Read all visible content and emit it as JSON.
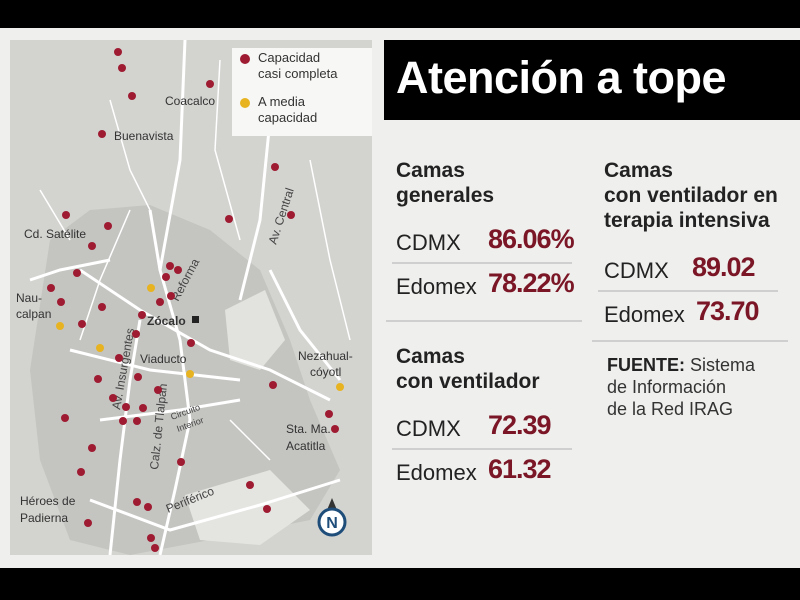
{
  "title": "Atención a tope",
  "legend": {
    "items": [
      {
        "label_line1": "Capacidad",
        "label_line2": "casi completa",
        "color": "#9e1b32"
      },
      {
        "label_line1": "A media",
        "label_line2": "capacidad",
        "color": "#e8b320"
      }
    ]
  },
  "map": {
    "places": {
      "coacalco": "Coacalco",
      "buenavista": "Buenavista",
      "satelite": "Cd. Satélite",
      "naucalpan1": "Nau-",
      "naucalpan2": "calpan",
      "zocalo": "Zócalo",
      "viaducto": "Viaducto",
      "neza1": "Nezahual-",
      "neza2": "cóyotl",
      "acatitla1": "Sta. Ma.",
      "acatitla2": "Acatitla",
      "heroes1": "Héroes de",
      "heroes2": "Padierna"
    },
    "streets": {
      "av_central": "Av. Central",
      "reforma": "Reforma",
      "insurgentes": "Av. Insurgentes",
      "tlalpan": "Calz. de Tlalpan",
      "circuito1": "Circuito",
      "circuito2": "Interior",
      "periferico": "Periférico"
    },
    "compass": "N",
    "marker_colors": {
      "full": "#9e1b32",
      "half": "#e8b320"
    }
  },
  "cards": {
    "generales": {
      "title_line1": "Camas",
      "title_line2": "generales",
      "rows": [
        {
          "label": "CDMX",
          "value": "86.06%"
        },
        {
          "label": "Edomex",
          "value": "78.22%"
        }
      ]
    },
    "ventilador": {
      "title_line1": "Camas",
      "title_line2": "con ventilador",
      "rows": [
        {
          "label": "CDMX",
          "value": "72.39"
        },
        {
          "label": "Edomex",
          "value": "61.32"
        }
      ]
    },
    "terapia": {
      "title_line1": "Camas",
      "title_line2": "con ventilador en",
      "title_line3": "terapia intensiva",
      "rows": [
        {
          "label": "CDMX",
          "value": "89.02"
        },
        {
          "label": "Edomex",
          "value": "73.70"
        }
      ]
    }
  },
  "source": {
    "label": "FUENTE:",
    "line1": " Sistema",
    "line2": "de Información",
    "line3": "de la Red IRAG"
  }
}
